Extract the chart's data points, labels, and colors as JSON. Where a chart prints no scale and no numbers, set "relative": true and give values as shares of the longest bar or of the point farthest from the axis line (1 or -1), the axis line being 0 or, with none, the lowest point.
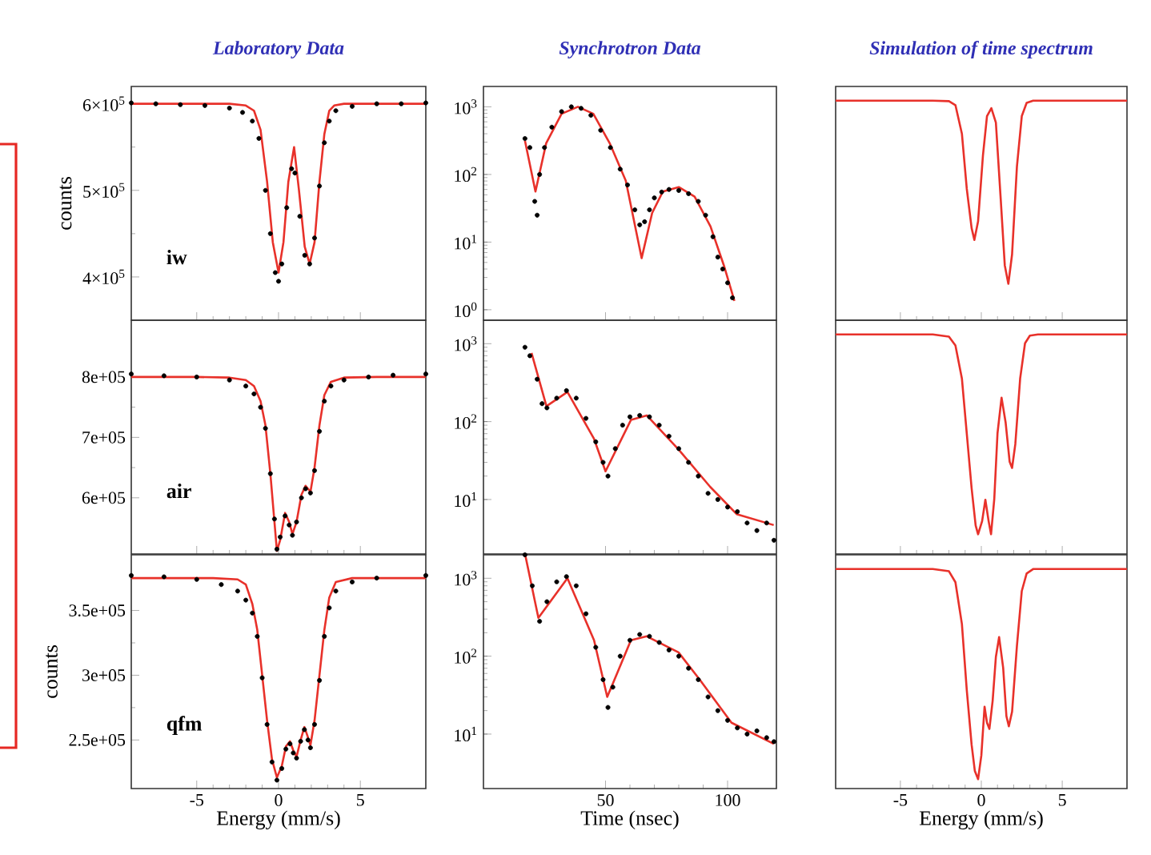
{
  "chart_data": [
    {
      "type": "scatter",
      "title": "Laboratory Data",
      "ylabel": "counts",
      "annotations": [
        "iw"
      ],
      "xlim": [
        -9,
        9
      ],
      "xticks": [
        -5,
        0,
        5
      ],
      "ylim": [
        350000,
        620000
      ],
      "yticks": [
        {
          "value": 400000,
          "label": "4×10$^{5}$"
        },
        {
          "value": 500000,
          "label": "5×10$^{5}$"
        },
        {
          "value": 600000,
          "label": "6×10$^{5}$"
        }
      ],
      "tick_labels": "y",
      "series": [
        {
          "color": "#000000",
          "marker": "circle",
          "x": [
            -9,
            -7.5,
            -6,
            -4.5,
            -3,
            -2.2,
            -1.6,
            -1.2,
            -0.8,
            -0.5,
            -0.2,
            0,
            0.2,
            0.5,
            0.8,
            1.0,
            1.3,
            1.6,
            1.9,
            2.2,
            2.5,
            2.8,
            3.1,
            3.5,
            4.5,
            6,
            7.5,
            9
          ],
          "values": [
            601000,
            600000,
            599000,
            598000,
            595000,
            590000,
            580000,
            560000,
            500000,
            450000,
            405000,
            395000,
            415000,
            480000,
            525000,
            520000,
            470000,
            425000,
            415000,
            445000,
            505000,
            555000,
            580000,
            592000,
            597000,
            600000,
            600000,
            601000
          ]
        },
        {
          "type": "line",
          "color": "#e8312a",
          "x": [
            -9,
            -6,
            -3,
            -2,
            -1.5,
            -1.1,
            -0.7,
            -0.35,
            0,
            0.3,
            0.6,
            0.95,
            1.25,
            1.6,
            1.9,
            2.2,
            2.5,
            2.8,
            3.1,
            3.4,
            4,
            6,
            9
          ],
          "values": [
            600000,
            600000,
            600000,
            598000,
            592000,
            570000,
            510000,
            440000,
            405000,
            440000,
            510000,
            550000,
            500000,
            435000,
            415000,
            440000,
            510000,
            565000,
            592000,
            598000,
            600000,
            600000,
            600000
          ]
        }
      ]
    },
    {
      "type": "scatter",
      "title": "Synchrotron Data",
      "log": "y",
      "xlim": [
        0,
        120
      ],
      "xticks": [
        50,
        100
      ],
      "ylim": [
        0.7,
        2000
      ],
      "yticks": [
        {
          "value": 1,
          "label": "10$^{0}$"
        },
        {
          "value": 10,
          "label": "10$^{1}$"
        },
        {
          "value": 100,
          "label": "10$^{2}$"
        },
        {
          "value": 1000,
          "label": "10$^{3}$"
        }
      ],
      "tick_labels": "y",
      "series": [
        {
          "color": "#000000",
          "marker": "circle",
          "x": [
            17,
            19,
            21,
            22,
            23,
            25,
            28,
            32,
            36,
            40,
            44,
            48,
            52,
            56,
            59,
            62,
            64,
            66,
            68,
            70,
            73,
            76,
            80,
            84,
            88,
            91,
            94,
            96,
            98,
            100,
            102
          ],
          "values": [
            340,
            250,
            40,
            25,
            100,
            250,
            500,
            850,
            1000,
            950,
            750,
            450,
            250,
            120,
            70,
            30,
            18,
            20,
            30,
            45,
            55,
            60,
            58,
            52,
            40,
            25,
            12,
            6,
            4,
            2.5,
            1.5
          ]
        },
        {
          "type": "line",
          "color": "#e8312a",
          "x": [
            17,
            21.3,
            25.7,
            32,
            38.7,
            45,
            51.7,
            58.3,
            64.8,
            69.1,
            73.5,
            80,
            86.5,
            93,
            98.5,
            102.8
          ],
          "values": [
            316,
            56,
            290,
            790,
            1000,
            790,
            290,
            81,
            5.8,
            27,
            56,
            65,
            47,
            17,
            4.5,
            1.35
          ]
        }
      ]
    },
    {
      "type": "line",
      "title": "Simulation of time spectrum",
      "relative": true,
      "tick_labels": false,
      "xlim": [
        -9,
        9
      ],
      "xticks": [
        -5,
        0,
        5
      ],
      "x": [
        -9,
        -3,
        -2,
        -1.6,
        -1.2,
        -0.9,
        -0.6,
        -0.43,
        -0.2,
        0.1,
        0.35,
        0.62,
        0.9,
        1.2,
        1.45,
        1.67,
        1.9,
        2.2,
        2.5,
        2.8,
        3.2,
        9
      ],
      "series": [
        {
          "color": "#e8312a",
          "values": [
            1,
            1,
            0.998,
            0.98,
            0.85,
            0.6,
            0.42,
            0.366,
            0.45,
            0.75,
            0.93,
            0.966,
            0.9,
            0.55,
            0.25,
            0.166,
            0.3,
            0.7,
            0.93,
            0.99,
            1,
            1
          ]
        }
      ]
    },
    {
      "type": "scatter",
      "annotations": [
        "air"
      ],
      "xlim": [
        -9,
        9
      ],
      "xticks": [
        -5,
        0,
        5
      ],
      "ylim": [
        507000,
        894000
      ],
      "yticks": [
        {
          "value": 600000,
          "label": "6e+05"
        },
        {
          "value": 700000,
          "label": "7e+05"
        },
        {
          "value": 800000,
          "label": "8e+05"
        }
      ],
      "tick_labels": "y",
      "series": [
        {
          "color": "#000000",
          "marker": "circle",
          "x": [
            -9,
            -7,
            -5,
            -3,
            -2,
            -1.5,
            -1.1,
            -0.8,
            -0.5,
            -0.25,
            -0.1,
            0.1,
            0.4,
            0.65,
            0.85,
            1.1,
            1.4,
            1.65,
            1.95,
            2.2,
            2.5,
            2.8,
            3.2,
            4,
            5.5,
            7,
            9
          ],
          "values": [
            805000,
            802000,
            800000,
            795000,
            785000,
            772000,
            750000,
            715000,
            640000,
            565000,
            515000,
            535000,
            570000,
            555000,
            538000,
            560000,
            600000,
            615000,
            608000,
            645000,
            710000,
            760000,
            785000,
            795000,
            800000,
            803000,
            805000
          ]
        },
        {
          "type": "line",
          "color": "#e8312a",
          "x": [
            -9,
            -5,
            -3,
            -2,
            -1.5,
            -1.1,
            -0.8,
            -0.5,
            -0.25,
            -0.1,
            0.1,
            0.4,
            0.65,
            0.85,
            1.1,
            1.4,
            1.65,
            1.95,
            2.2,
            2.5,
            2.8,
            3.2,
            4,
            6,
            9
          ],
          "values": [
            800000,
            800000,
            799000,
            795000,
            785000,
            760000,
            720000,
            640000,
            560000,
            512000,
            530000,
            575000,
            560000,
            540000,
            560000,
            605000,
            620000,
            610000,
            650000,
            720000,
            770000,
            792000,
            799000,
            800000,
            800000
          ]
        }
      ]
    },
    {
      "type": "scatter",
      "log": "y",
      "xlim": [
        0,
        120
      ],
      "xticks": [
        50,
        100
      ],
      "ylim": [
        2,
        2000
      ],
      "yticks": [
        {
          "value": 10,
          "label": "10$^{1}$"
        },
        {
          "value": 100,
          "label": "10$^{2}$"
        },
        {
          "value": 1000,
          "label": "10$^{3}$"
        }
      ],
      "tick_labels": "y",
      "series": [
        {
          "color": "#000000",
          "marker": "circle",
          "x": [
            17,
            19,
            22,
            24,
            26,
            30,
            34,
            38,
            42,
            46,
            49,
            51,
            54,
            57,
            60,
            64,
            68,
            72,
            76,
            80,
            84,
            88,
            92,
            96,
            100,
            104,
            108,
            112,
            116,
            119
          ],
          "values": [
            900,
            700,
            350,
            170,
            150,
            200,
            250,
            200,
            110,
            55,
            30,
            20,
            45,
            90,
            115,
            120,
            115,
            90,
            65,
            45,
            30,
            20,
            12,
            10,
            8,
            7,
            5,
            4,
            5,
            3
          ]
        },
        {
          "type": "line",
          "color": "#e8312a",
          "x": [
            19.7,
            25.8,
            34.4,
            45.3,
            50,
            60.4,
            66.9,
            79.9,
            92.9,
            103.7,
            118.9
          ],
          "values": [
            760,
            158,
            240,
            60,
            23,
            105,
            120,
            44,
            14.5,
            6.5,
            4.7
          ]
        }
      ]
    },
    {
      "type": "line",
      "relative": true,
      "tick_labels": false,
      "xlim": [
        -9,
        9
      ],
      "xticks": [
        -5,
        0,
        5
      ],
      "x": [
        -9,
        -3,
        -2,
        -1.6,
        -1.2,
        -0.9,
        -0.6,
        -0.35,
        -0.2,
        0.05,
        0.25,
        0.45,
        0.6,
        0.8,
        1.0,
        1.25,
        1.5,
        1.75,
        1.9,
        2.1,
        2.4,
        2.7,
        3.0,
        3.5,
        9
      ],
      "series": [
        {
          "color": "#e8312a",
          "values": [
            1,
            1,
            0.99,
            0.95,
            0.8,
            0.55,
            0.3,
            0.13,
            0.09,
            0.15,
            0.247,
            0.15,
            0.09,
            0.25,
            0.55,
            0.712,
            0.6,
            0.42,
            0.392,
            0.5,
            0.8,
            0.96,
            0.995,
            1,
            1
          ]
        }
      ]
    },
    {
      "type": "scatter",
      "ylabel": "counts",
      "xlabel": "Energy (mm/s)",
      "annotations": [
        "qfm"
      ],
      "xlim": [
        -9,
        9
      ],
      "xticks": [
        -5,
        0,
        5
      ],
      "ylim": [
        212500,
        393000
      ],
      "yticks": [
        {
          "value": 250000,
          "label": "2.5e+05"
        },
        {
          "value": 300000,
          "label": "3e+05"
        },
        {
          "value": 350000,
          "label": "3.5e+05"
        }
      ],
      "series": [
        {
          "color": "#000000",
          "marker": "circle",
          "x": [
            -9,
            -7,
            -5,
            -3.5,
            -2.5,
            -2,
            -1.6,
            -1.3,
            -1,
            -0.7,
            -0.4,
            -0.1,
            0.2,
            0.45,
            0.7,
            0.9,
            1.1,
            1.35,
            1.58,
            1.8,
            1.95,
            2.2,
            2.5,
            2.8,
            3.1,
            3.5,
            4.5,
            6,
            9
          ],
          "values": [
            377000,
            376000,
            374000,
            370000,
            365000,
            358000,
            348000,
            330000,
            298000,
            262000,
            233000,
            219000,
            228000,
            243000,
            247000,
            240000,
            236000,
            249000,
            258000,
            250000,
            244000,
            262000,
            296000,
            330000,
            352000,
            365000,
            372000,
            375000,
            377000
          ]
        },
        {
          "type": "line",
          "color": "#e8312a",
          "x": [
            -9,
            -4,
            -2.5,
            -2,
            -1.6,
            -1.3,
            -1,
            -0.7,
            -0.4,
            -0.1,
            0.2,
            0.45,
            0.7,
            0.9,
            1.1,
            1.35,
            1.58,
            1.8,
            1.95,
            2.2,
            2.5,
            2.8,
            3.1,
            3.5,
            4.5,
            9
          ],
          "values": [
            375000,
            375000,
            374000,
            370000,
            355000,
            335000,
            300000,
            265000,
            235000,
            221000,
            230000,
            245000,
            249000,
            242000,
            237000,
            250000,
            260000,
            252000,
            246000,
            265000,
            300000,
            335000,
            360000,
            372000,
            375000,
            375000
          ]
        }
      ]
    },
    {
      "type": "scatter",
      "xlabel": "Time (nsec)",
      "log": "y",
      "xlim": [
        0,
        120
      ],
      "xticks": [
        50,
        100
      ],
      "ylim": [
        2,
        2000
      ],
      "yticks": [
        {
          "value": 10,
          "label": "10$^{1}$"
        },
        {
          "value": 100,
          "label": "10$^{2}$"
        },
        {
          "value": 1000,
          "label": "10$^{3}$"
        }
      ],
      "series": [
        {
          "color": "#000000",
          "marker": "circle",
          "x": [
            17,
            20,
            23,
            26,
            30,
            34,
            38,
            42,
            46,
            49,
            51,
            53,
            56,
            60,
            64,
            68,
            72,
            76,
            80,
            84,
            88,
            92,
            96,
            100,
            104,
            108,
            112,
            116,
            119
          ],
          "values": [
            2000,
            800,
            280,
            500,
            900,
            1050,
            800,
            350,
            130,
            50,
            22,
            40,
            100,
            160,
            190,
            180,
            150,
            120,
            100,
            70,
            50,
            30,
            20,
            15,
            12,
            10,
            11,
            9,
            8
          ]
        },
        {
          "type": "line",
          "color": "#e8312a",
          "x": [
            17.1,
            22.5,
            34.4,
            45.3,
            50.7,
            60.4,
            66.9,
            79.9,
            88.6,
            101.6,
            118.9
          ],
          "values": [
            2000,
            310,
            1000,
            160,
            30,
            160,
            180,
            112,
            50,
            14,
            7.5
          ]
        }
      ]
    },
    {
      "type": "line",
      "xlabel": "Energy (mm/s)",
      "relative": true,
      "tick_labels": "x",
      "xlim": [
        -9,
        9
      ],
      "xticks": [
        -5,
        0,
        5
      ],
      "x": [
        -9,
        -3,
        -2,
        -1.6,
        -1.2,
        -0.9,
        -0.6,
        -0.4,
        -0.2,
        0.0,
        0.2,
        0.35,
        0.5,
        0.7,
        0.9,
        1.1,
        1.35,
        1.55,
        1.7,
        1.9,
        2.2,
        2.5,
        2.8,
        3.2,
        9
      ],
      "series": [
        {
          "color": "#e8312a",
          "values": [
            1,
            1,
            0.99,
            0.94,
            0.75,
            0.45,
            0.2,
            0.08,
            0.043,
            0.15,
            0.373,
            0.3,
            0.272,
            0.4,
            0.6,
            0.69,
            0.55,
            0.33,
            0.284,
            0.35,
            0.65,
            0.9,
            0.98,
            1,
            1
          ]
        }
      ]
    }
  ]
}
